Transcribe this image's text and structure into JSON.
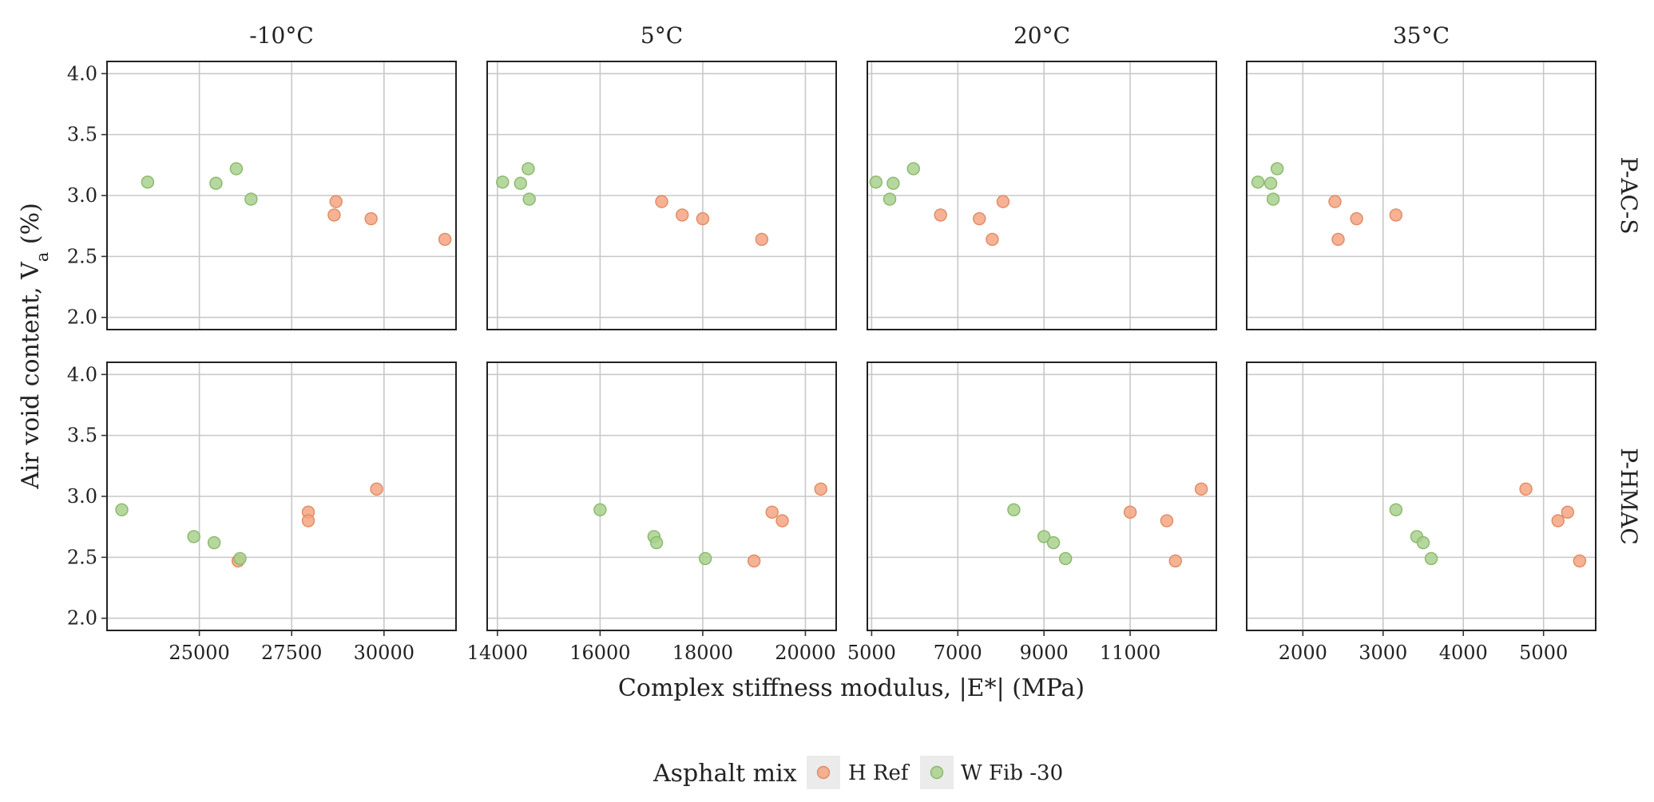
{
  "chart_data": {
    "type": "scatter",
    "title": "",
    "xlabel": "Complex stiffness modulus, |E*| (MPa)",
    "ylabel_main": "Air void content, V",
    "ylabel_sub": "a",
    "ylabel_suffix": " (%)",
    "ylim": [
      1.9,
      4.1
    ],
    "yticks": [
      2.0,
      2.5,
      3.0,
      3.5,
      4.0
    ],
    "ytick_labels": [
      "2.0",
      "2.5",
      "3.0",
      "3.5",
      "4.0"
    ],
    "columns": [
      {
        "label": "-10°C",
        "xlim": [
          22500,
          31950
        ],
        "xticks": [
          25000,
          27500,
          30000
        ],
        "xtick_labels": [
          "25000",
          "27500",
          "30000"
        ]
      },
      {
        "label": "5°C",
        "xlim": [
          13800,
          20600
        ],
        "xticks": [
          14000,
          16000,
          18000,
          20000
        ],
        "xtick_labels": [
          "14000",
          "16000",
          "18000",
          "20000"
        ]
      },
      {
        "label": "20°C",
        "xlim": [
          4900,
          13000
        ],
        "xticks": [
          5000,
          7000,
          9000,
          11000
        ],
        "xtick_labels": [
          "5000",
          "7000",
          "9000",
          "11000"
        ]
      },
      {
        "label": "35°C",
        "xlim": [
          1300,
          5650
        ],
        "xticks": [
          2000,
          3000,
          4000,
          5000
        ],
        "xtick_labels": [
          "2000",
          "3000",
          "4000",
          "5000"
        ]
      }
    ],
    "rows": [
      {
        "label": "P-AC-S"
      },
      {
        "label": "P-HMAC"
      }
    ],
    "series": [
      {
        "name": "H Ref",
        "color": "#F4A582",
        "stroke": "#E08A60"
      },
      {
        "name": "W Fib -30",
        "color": "#A9D18E",
        "stroke": "#86B86A"
      }
    ],
    "panels": [
      {
        "row": 0,
        "col": 0,
        "points": [
          {
            "series": 0,
            "x": 28700,
            "y": 2.95
          },
          {
            "series": 0,
            "x": 28650,
            "y": 2.84
          },
          {
            "series": 0,
            "x": 29650,
            "y": 2.81
          },
          {
            "series": 0,
            "x": 31650,
            "y": 2.64
          },
          {
            "series": 1,
            "x": 23600,
            "y": 3.11
          },
          {
            "series": 1,
            "x": 25450,
            "y": 3.1
          },
          {
            "series": 1,
            "x": 26000,
            "y": 3.22
          },
          {
            "series": 1,
            "x": 26400,
            "y": 2.97
          }
        ]
      },
      {
        "row": 0,
        "col": 1,
        "points": [
          {
            "series": 0,
            "x": 17200,
            "y": 2.95
          },
          {
            "series": 0,
            "x": 17600,
            "y": 2.84
          },
          {
            "series": 0,
            "x": 18000,
            "y": 2.81
          },
          {
            "series": 0,
            "x": 19150,
            "y": 2.64
          },
          {
            "series": 1,
            "x": 14100,
            "y": 3.11
          },
          {
            "series": 1,
            "x": 14450,
            "y": 3.1
          },
          {
            "series": 1,
            "x": 14600,
            "y": 3.22
          },
          {
            "series": 1,
            "x": 14620,
            "y": 2.97
          }
        ]
      },
      {
        "row": 0,
        "col": 2,
        "points": [
          {
            "series": 0,
            "x": 8050,
            "y": 2.95
          },
          {
            "series": 0,
            "x": 6600,
            "y": 2.84
          },
          {
            "series": 0,
            "x": 7500,
            "y": 2.81
          },
          {
            "series": 0,
            "x": 7800,
            "y": 2.64
          },
          {
            "series": 1,
            "x": 5100,
            "y": 3.11
          },
          {
            "series": 1,
            "x": 5500,
            "y": 3.1
          },
          {
            "series": 1,
            "x": 5970,
            "y": 3.22
          },
          {
            "series": 1,
            "x": 5420,
            "y": 2.97
          }
        ]
      },
      {
        "row": 0,
        "col": 3,
        "points": [
          {
            "series": 0,
            "x": 2400,
            "y": 2.95
          },
          {
            "series": 0,
            "x": 3160,
            "y": 2.84
          },
          {
            "series": 0,
            "x": 2670,
            "y": 2.81
          },
          {
            "series": 0,
            "x": 2440,
            "y": 2.64
          },
          {
            "series": 1,
            "x": 1440,
            "y": 3.11
          },
          {
            "series": 1,
            "x": 1600,
            "y": 3.1
          },
          {
            "series": 1,
            "x": 1680,
            "y": 3.22
          },
          {
            "series": 1,
            "x": 1630,
            "y": 2.97
          }
        ]
      },
      {
        "row": 1,
        "col": 0,
        "points": [
          {
            "series": 0,
            "x": 29800,
            "y": 3.06
          },
          {
            "series": 0,
            "x": 27950,
            "y": 2.87
          },
          {
            "series": 0,
            "x": 27950,
            "y": 2.8
          },
          {
            "series": 0,
            "x": 26050,
            "y": 2.47
          },
          {
            "series": 1,
            "x": 22900,
            "y": 2.89
          },
          {
            "series": 1,
            "x": 24850,
            "y": 2.67
          },
          {
            "series": 1,
            "x": 25400,
            "y": 2.62
          },
          {
            "series": 1,
            "x": 26100,
            "y": 2.49
          }
        ]
      },
      {
        "row": 1,
        "col": 1,
        "points": [
          {
            "series": 0,
            "x": 20300,
            "y": 3.06
          },
          {
            "series": 0,
            "x": 19350,
            "y": 2.87
          },
          {
            "series": 0,
            "x": 19550,
            "y": 2.8
          },
          {
            "series": 0,
            "x": 19000,
            "y": 2.47
          },
          {
            "series": 1,
            "x": 16000,
            "y": 2.89
          },
          {
            "series": 1,
            "x": 17050,
            "y": 2.67
          },
          {
            "series": 1,
            "x": 17100,
            "y": 2.62
          },
          {
            "series": 1,
            "x": 18050,
            "y": 2.49
          }
        ]
      },
      {
        "row": 1,
        "col": 2,
        "points": [
          {
            "series": 0,
            "x": 12650,
            "y": 3.06
          },
          {
            "series": 0,
            "x": 11000,
            "y": 2.87
          },
          {
            "series": 0,
            "x": 11850,
            "y": 2.8
          },
          {
            "series": 0,
            "x": 12050,
            "y": 2.47
          },
          {
            "series": 1,
            "x": 8300,
            "y": 2.89
          },
          {
            "series": 1,
            "x": 9000,
            "y": 2.67
          },
          {
            "series": 1,
            "x": 9220,
            "y": 2.62
          },
          {
            "series": 1,
            "x": 9500,
            "y": 2.49
          }
        ]
      },
      {
        "row": 1,
        "col": 3,
        "points": [
          {
            "series": 0,
            "x": 4780,
            "y": 3.06
          },
          {
            "series": 0,
            "x": 5300,
            "y": 2.87
          },
          {
            "series": 0,
            "x": 5180,
            "y": 2.8
          },
          {
            "series": 0,
            "x": 5450,
            "y": 2.47
          },
          {
            "series": 1,
            "x": 3160,
            "y": 2.89
          },
          {
            "series": 1,
            "x": 3420,
            "y": 2.67
          },
          {
            "series": 1,
            "x": 3500,
            "y": 2.62
          },
          {
            "series": 1,
            "x": 3600,
            "y": 2.49
          }
        ]
      }
    ],
    "legend": {
      "title": "Asphalt mix",
      "position": "bottom"
    },
    "grid": true
  }
}
